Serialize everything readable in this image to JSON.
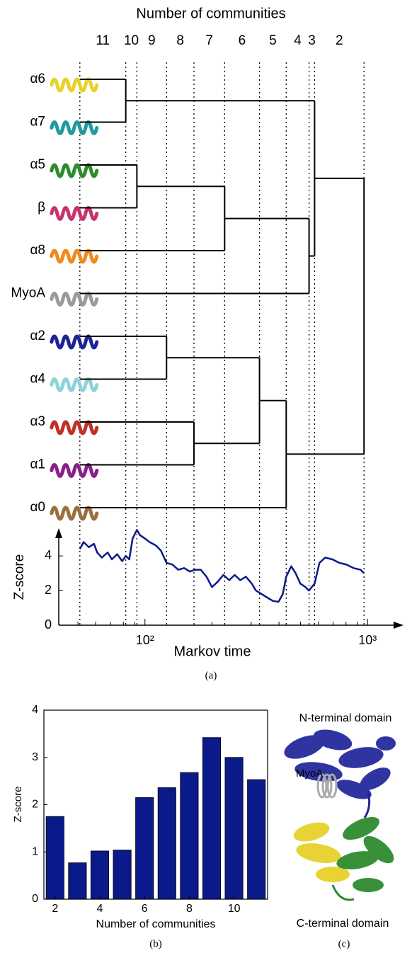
{
  "chart_data": [
    {
      "type": "dendrogram",
      "title": "Number of communities",
      "leaves": [
        {
          "label": "α6",
          "color": "#e6d22a"
        },
        {
          "label": "α7",
          "color": "#1e9aa0"
        },
        {
          "label": "α5",
          "color": "#2e8b2e"
        },
        {
          "label": "β",
          "color": "#c8336e"
        },
        {
          "label": "α8",
          "color": "#f08a1c"
        },
        {
          "label": "MyoA",
          "color": "#9a9a9a"
        },
        {
          "label": "α2",
          "color": "#1f239a"
        },
        {
          "label": "α4",
          "color": "#8fd3d8"
        },
        {
          "label": "α3",
          "color": "#c0302a"
        },
        {
          "label": "α1",
          "color": "#8a1f8a"
        },
        {
          "label": "α0",
          "color": "#9a7040"
        }
      ],
      "merges": [
        {
          "children": [
            0,
            1
          ],
          "time": 82
        },
        {
          "children": [
            2,
            3
          ],
          "time": 92
        },
        {
          "children": [
            6,
            7
          ],
          "time": 125
        },
        {
          "children": [
            8,
            9
          ],
          "time": 166
        },
        {
          "children": [
            12,
            4
          ],
          "time": 228
        },
        {
          "children": [
            13,
            14
          ],
          "time": 327
        },
        {
          "children": [
            16,
            10
          ],
          "time": 431
        },
        {
          "children": [
            15,
            5
          ],
          "time": 546
        },
        {
          "children": [
            11,
            18
          ],
          "time": 578
        },
        {
          "children": [
            19,
            17
          ],
          "time": 964
        }
      ],
      "boundaries": [
        51,
        82,
        92,
        125,
        166,
        228,
        327,
        431,
        546,
        578,
        964
      ],
      "community_counts": [
        11,
        10,
        9,
        8,
        7,
        6,
        5,
        4,
        3,
        2
      ]
    },
    {
      "type": "line",
      "xlabel": "Markov time",
      "ylabel": "Z-score",
      "caption": "(a)",
      "log_x": true,
      "color": "#0a1a8a",
      "xlim": [
        41,
        1450
      ],
      "xticks": [
        {
          "value": 100,
          "label": "10²"
        },
        {
          "value": 1000,
          "label": "10³"
        }
      ],
      "minor_xticks": [
        50,
        60,
        70,
        80,
        90,
        200,
        300,
        400,
        500,
        600,
        700,
        800,
        900
      ],
      "ylim": [
        0,
        5.6
      ],
      "yticks": [
        0,
        2,
        4
      ],
      "x": [
        51,
        53,
        56,
        59,
        61,
        64,
        68,
        71,
        75,
        79,
        82,
        85,
        88,
        92,
        95,
        100,
        105,
        112,
        118,
        125,
        133,
        141,
        150,
        159,
        168,
        178,
        189,
        200,
        212,
        225,
        239,
        253,
        268,
        284,
        302,
        315,
        334,
        354,
        376,
        398,
        416,
        431,
        454,
        475,
        499,
        526,
        545,
        578,
        608,
        645,
        694,
        746,
        803,
        864,
        930,
        964
      ],
      "values": [
        4.4,
        4.8,
        4.5,
        4.7,
        4.2,
        3.9,
        4.2,
        3.8,
        4.1,
        3.7,
        4.0,
        3.8,
        5.0,
        5.5,
        5.2,
        5.0,
        4.8,
        4.6,
        4.3,
        3.6,
        3.5,
        3.2,
        3.3,
        3.1,
        3.2,
        3.2,
        2.8,
        2.2,
        2.5,
        2.9,
        2.6,
        2.9,
        2.6,
        2.8,
        2.4,
        2.0,
        1.8,
        1.6,
        1.4,
        1.35,
        1.8,
        2.8,
        3.4,
        3.0,
        2.4,
        2.2,
        2.0,
        2.4,
        3.6,
        3.9,
        3.8,
        3.6,
        3.5,
        3.3,
        3.2,
        3.0
      ]
    },
    {
      "type": "bar",
      "xlabel": "Number of communities",
      "ylabel": "Z-score",
      "caption": "(b)",
      "color": "#0a1a8a",
      "categories": [
        2,
        3,
        4,
        5,
        6,
        7,
        8,
        9,
        10,
        11
      ],
      "values": [
        1.75,
        0.77,
        1.02,
        1.04,
        2.15,
        2.36,
        2.68,
        3.42,
        3.0,
        2.53
      ],
      "xlim": [
        1.5,
        11.5
      ],
      "xticks": [
        2,
        4,
        6,
        8,
        10
      ],
      "ylim": [
        0,
        4
      ],
      "yticks": [
        0,
        1,
        2,
        3,
        4
      ]
    }
  ],
  "panel_c": {
    "n_label": "N-terminal domain",
    "myoa_label": "MyoA",
    "c_label": "C-terminal domain",
    "caption": "(c)"
  }
}
